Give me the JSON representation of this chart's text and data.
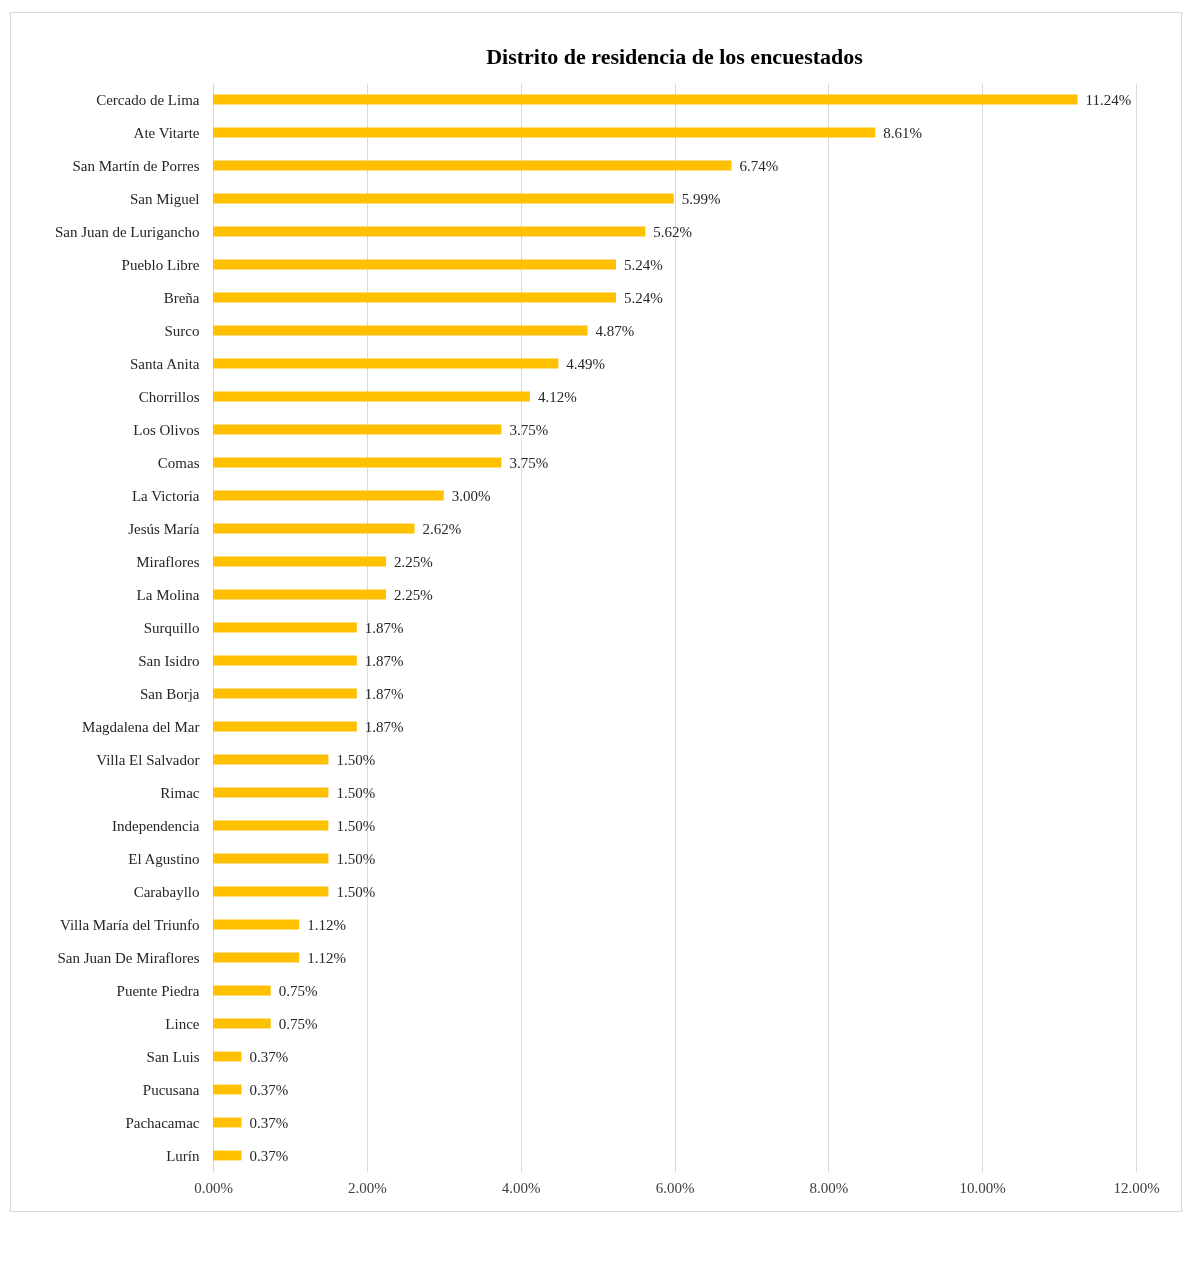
{
  "chart_data": {
    "type": "bar",
    "orientation": "horizontal",
    "title": "Distrito de residencia de los encuestados",
    "categories": [
      "Cercado de Lima",
      "Ate Vitarte",
      "San Martín de Porres",
      "San Miguel",
      "San Juan de Lurigancho",
      "Pueblo Libre",
      "Breña",
      "Surco",
      "Santa Anita",
      "Chorrillos",
      "Los Olivos",
      "Comas",
      "La Victoria",
      "Jesús María",
      "Miraflores",
      "La Molina",
      "Surquillo",
      "San Isidro",
      "San Borja",
      "Magdalena del Mar",
      "Villa El Salvador",
      "Rimac",
      "Independencia",
      "El Agustino",
      "Carabayllo",
      "Villa María del Triunfo",
      "San Juan De Miraflores",
      "Puente Piedra",
      "Lince",
      "San Luis",
      "Pucusana",
      "Pachacamac",
      "Lurín"
    ],
    "values": [
      11.24,
      8.61,
      6.74,
      5.99,
      5.62,
      5.24,
      5.24,
      4.87,
      4.49,
      4.12,
      3.75,
      3.75,
      3.0,
      2.62,
      2.25,
      2.25,
      1.87,
      1.87,
      1.87,
      1.87,
      1.5,
      1.5,
      1.5,
      1.5,
      1.5,
      1.12,
      1.12,
      0.75,
      0.75,
      0.37,
      0.37,
      0.37,
      0.37
    ],
    "value_labels": [
      "11.24%",
      "8.61%",
      "6.74%",
      "5.99%",
      "5.62%",
      "5.24%",
      "5.24%",
      "4.87%",
      "4.49%",
      "4.12%",
      "3.75%",
      "3.75%",
      "3.00%",
      "2.62%",
      "2.25%",
      "2.25%",
      "1.87%",
      "1.87%",
      "1.87%",
      "1.87%",
      "1.50%",
      "1.50%",
      "1.50%",
      "1.50%",
      "1.50%",
      "1.12%",
      "1.12%",
      "0.75%",
      "0.75%",
      "0.37%",
      "0.37%",
      "0.37%",
      "0.37%"
    ],
    "color": "#ffc000",
    "xlim": [
      0,
      12
    ],
    "xticks": [
      {
        "value": 0,
        "label": "0.00%"
      },
      {
        "value": 2,
        "label": "2.00%"
      },
      {
        "value": 4,
        "label": "4.00%"
      },
      {
        "value": 6,
        "label": "6.00%"
      },
      {
        "value": 8,
        "label": "8.00%"
      },
      {
        "value": 10,
        "label": "10.00%"
      },
      {
        "value": 12,
        "label": "12.00%"
      }
    ],
    "grid": "x"
  }
}
